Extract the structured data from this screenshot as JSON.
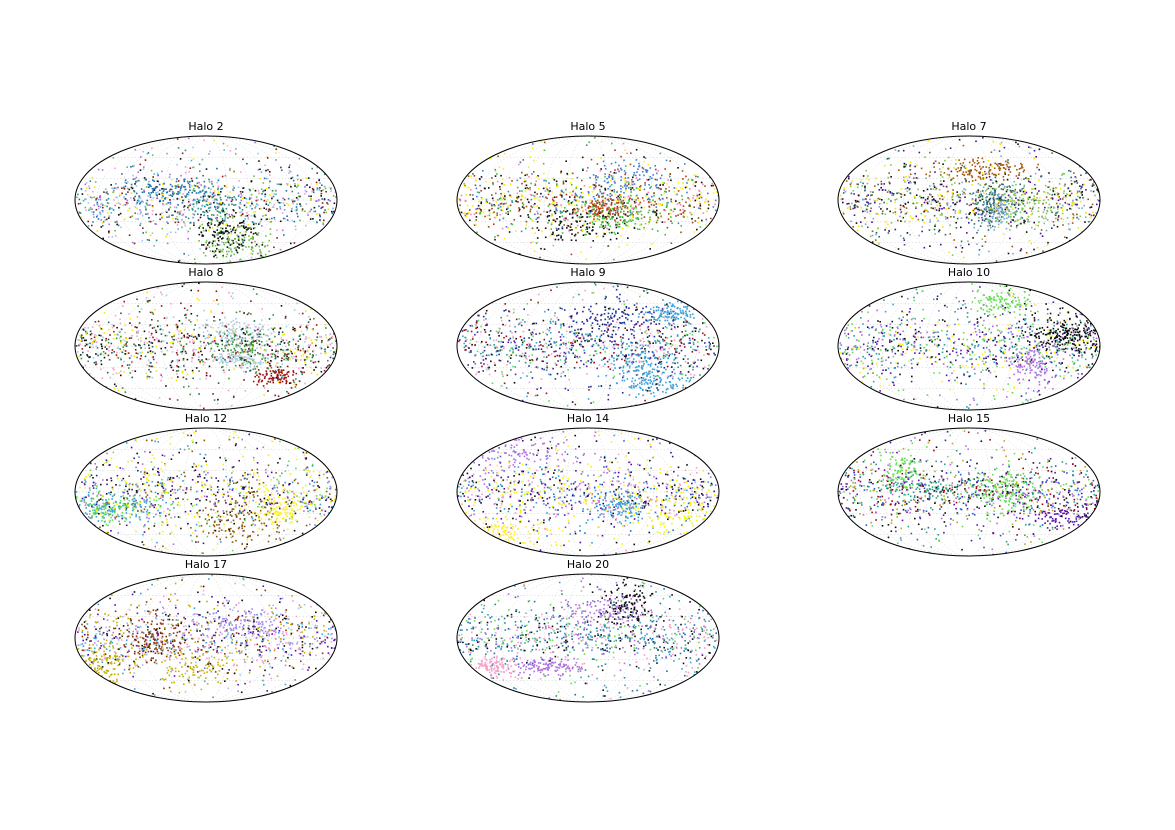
{
  "chart_data": [
    {
      "type": "scatter",
      "title": "Halo 2",
      "projection": "mollweide",
      "grid": true,
      "colors": [
        "#1f6fb0",
        "#5ab4e6",
        "#9ec7ea",
        "#2a8c8c",
        "#0d0d0d",
        "#f0a0d0",
        "#8b1a1a",
        "#ffe600",
        "#6fbe4a",
        "#b070e0"
      ]
    },
    {
      "type": "scatter",
      "title": "Halo 5",
      "projection": "mollweide",
      "grid": true,
      "colors": [
        "#ffee22",
        "#f7f000",
        "#8a5a10",
        "#b23b1a",
        "#3f7fd0",
        "#ff7fbf",
        "#40c040",
        "#0d0d0d"
      ]
    },
    {
      "type": "scatter",
      "title": "Halo 7",
      "projection": "mollweide",
      "grid": true,
      "colors": [
        "#4b0f9a",
        "#2a6a6a",
        "#7dc85a",
        "#7fa7d8",
        "#ffe600",
        "#0d0d0d",
        "#a05a10"
      ]
    },
    {
      "type": "scatter",
      "title": "Halo 8",
      "projection": "mollweide",
      "grid": true,
      "colors": [
        "#9a1010",
        "#0d0d0d",
        "#ffe600",
        "#1f6060",
        "#a9cce0",
        "#3e8f3e",
        "#ff9ad0"
      ]
    },
    {
      "type": "scatter",
      "title": "Halo 9",
      "projection": "mollweide",
      "grid": true,
      "colors": [
        "#1b2c9a",
        "#f5a0c8",
        "#2f9a8c",
        "#5a1ca0",
        "#0d0d0d",
        "#66dd55",
        "#3aa0d8",
        "#9a1010"
      ]
    },
    {
      "type": "scatter",
      "title": "Halo 10",
      "projection": "mollweide",
      "grid": true,
      "colors": [
        "#5a10b0",
        "#ffee22",
        "#2aa08c",
        "#66dd55",
        "#0d0d0d",
        "#3aa0d8",
        "#b070e0"
      ]
    },
    {
      "type": "scatter",
      "title": "Halo 12",
      "projection": "mollweide",
      "grid": true,
      "colors": [
        "#ffee22",
        "#f7f000",
        "#66dd55",
        "#0d0d0d",
        "#b070e0",
        "#3aa0d8",
        "#4b0f9a",
        "#8a5a10"
      ]
    },
    {
      "type": "scatter",
      "title": "Halo 14",
      "projection": "mollweide",
      "grid": true,
      "colors": [
        "#ffee22",
        "#f7f000",
        "#3aa0d8",
        "#1f6fd0",
        "#b070e0",
        "#f5a0c8",
        "#4b0f9a",
        "#0d0d0d"
      ]
    },
    {
      "type": "scatter",
      "title": "Halo 15",
      "projection": "mollweide",
      "grid": true,
      "colors": [
        "#a00010",
        "#2a5ad0",
        "#5a10b0",
        "#c8a020",
        "#2aa08c",
        "#b070e0",
        "#66dd55",
        "#0d0d0d"
      ]
    },
    {
      "type": "scatter",
      "title": "Halo 17",
      "projection": "mollweide",
      "grid": true,
      "colors": [
        "#5a10b0",
        "#a78aea",
        "#9ec7ea",
        "#c8b000",
        "#8a3a05",
        "#3aa0d8",
        "#ff9ad0",
        "#0d0d0d"
      ]
    },
    {
      "type": "scatter",
      "title": "Halo 20",
      "projection": "mollweide",
      "grid": true,
      "colors": [
        "#2a8c8c",
        "#3aa0d8",
        "#b070e0",
        "#f5a0c8",
        "#0d0d0d",
        "#66dd55",
        "#1f6fb0"
      ]
    }
  ]
}
